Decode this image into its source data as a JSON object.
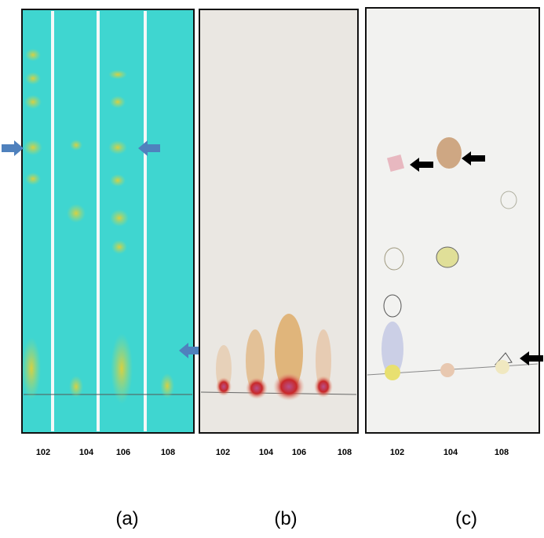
{
  "panels": [
    {
      "caption": "(a)",
      "lanes": [
        "102",
        "104",
        "106",
        "108"
      ]
    },
    {
      "caption": "(b)",
      "lanes": [
        "102",
        "104",
        "106",
        "108"
      ]
    },
    {
      "caption": "(c)",
      "lanes": [
        "102",
        "104",
        "108"
      ]
    }
  ]
}
